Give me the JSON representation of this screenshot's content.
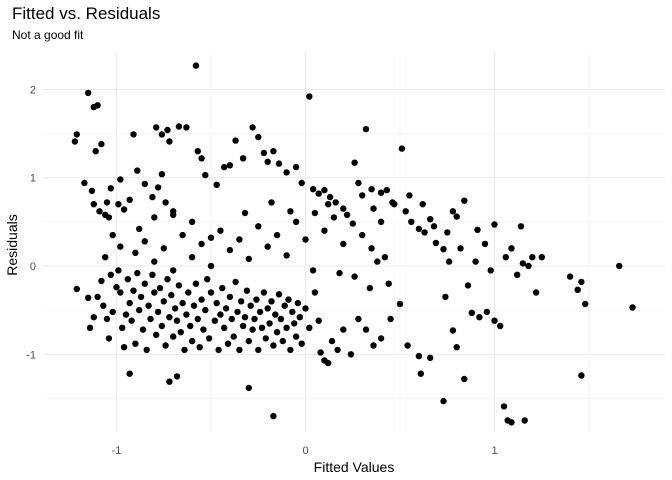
{
  "chart_data": {
    "type": "scatter",
    "title": "Fitted vs. Residuals",
    "subtitle": "Not a good fit",
    "xlabel": "Fitted Values",
    "ylabel": "Residuals",
    "xlim": [
      -1.28,
      1.75
    ],
    "ylim": [
      -1.75,
      2.3
    ],
    "xticks": [
      -1,
      0,
      1
    ],
    "xtick_labels": [
      "-1",
      "0",
      "1"
    ],
    "yticks": [
      -1,
      0,
      1,
      2
    ],
    "ytick_labels": [
      "-1",
      "0",
      "1",
      "2"
    ],
    "grid": true,
    "point_color": "#000000",
    "points": [
      [
        -1.22,
        1.41
      ],
      [
        -1.21,
        1.49
      ],
      [
        -1.15,
        1.96
      ],
      [
        -1.12,
        1.8
      ],
      [
        -1.1,
        1.82
      ],
      [
        -1.11,
        1.3
      ],
      [
        -1.08,
        1.38
      ],
      [
        -1.17,
        0.94
      ],
      [
        -1.13,
        0.85
      ],
      [
        -1.12,
        0.7
      ],
      [
        -1.09,
        0.62
      ],
      [
        -1.06,
        0.58
      ],
      [
        -1.04,
        0.55
      ],
      [
        -1.05,
        0.72
      ],
      [
        -1.03,
        0.88
      ],
      [
        -0.99,
        0.7
      ],
      [
        -0.96,
        0.64
      ],
      [
        -0.93,
        0.75
      ],
      [
        -0.98,
        0.98
      ],
      [
        -0.91,
        1.49
      ],
      [
        -0.89,
        1.08
      ],
      [
        -0.85,
        0.93
      ],
      [
        -0.81,
        0.78
      ],
      [
        -0.8,
        0.55
      ],
      [
        -0.78,
        0.89
      ],
      [
        -0.76,
        1.04
      ],
      [
        -0.74,
        0.72
      ],
      [
        -0.7,
        0.62
      ],
      [
        -0.79,
        1.57
      ],
      [
        -0.76,
        1.49
      ],
      [
        -0.73,
        1.54
      ],
      [
        -0.72,
        1.41
      ],
      [
        -0.67,
        1.58
      ],
      [
        -0.63,
        1.57
      ],
      [
        -0.58,
        2.27
      ],
      [
        -0.57,
        1.3
      ],
      [
        -0.55,
        1.22
      ],
      [
        -0.53,
        1.03
      ],
      [
        -0.47,
        0.92
      ],
      [
        -0.43,
        1.12
      ],
      [
        -0.4,
        1.14
      ],
      [
        -0.37,
        1.42
      ],
      [
        -0.33,
        1.22
      ],
      [
        -0.28,
        1.57
      ],
      [
        -0.25,
        1.46
      ],
      [
        -0.22,
        1.28
      ],
      [
        -0.2,
        1.18
      ],
      [
        -0.17,
        1.3
      ],
      [
        -0.14,
        1.16
      ],
      [
        -0.1,
        1.06
      ],
      [
        -0.05,
        1.12
      ],
      [
        -0.02,
        0.94
      ],
      [
        0.02,
        1.92
      ],
      [
        0.04,
        0.87
      ],
      [
        0.07,
        0.82
      ],
      [
        0.1,
        0.86
      ],
      [
        0.13,
        0.78
      ],
      [
        0.16,
        0.72
      ],
      [
        0.2,
        0.65
      ],
      [
        0.26,
        1.17
      ],
      [
        0.28,
        0.94
      ],
      [
        0.32,
        1.55
      ],
      [
        0.35,
        0.87
      ],
      [
        0.4,
        0.83
      ],
      [
        0.43,
        0.86
      ],
      [
        0.47,
        0.7
      ],
      [
        0.51,
        1.33
      ],
      [
        0.53,
        0.62
      ],
      [
        0.56,
        0.5
      ],
      [
        0.6,
        0.42
      ],
      [
        0.63,
        0.38
      ],
      [
        0.66,
        0.53
      ],
      [
        0.69,
        0.26
      ],
      [
        0.73,
        0.19
      ],
      [
        0.76,
        0.05
      ],
      [
        0.78,
        0.62
      ],
      [
        0.8,
        0.56
      ],
      [
        0.84,
        0.74
      ],
      [
        0.91,
        0.41
      ],
      [
        0.95,
        0.25
      ],
      [
        1.0,
        0.47
      ],
      [
        1.06,
        0.1
      ],
      [
        1.09,
        0.2
      ],
      [
        1.14,
        0.45
      ],
      [
        1.15,
        0.03
      ],
      [
        1.2,
        0.1
      ],
      [
        1.25,
        0.1
      ],
      [
        1.4,
        -0.12
      ],
      [
        1.44,
        -0.27
      ],
      [
        1.46,
        -0.18
      ],
      [
        1.48,
        -0.43
      ],
      [
        1.66,
        0.0
      ],
      [
        1.73,
        -0.47
      ],
      [
        -1.21,
        -0.26
      ],
      [
        -1.15,
        -0.36
      ],
      [
        -1.14,
        -0.7
      ],
      [
        -1.12,
        -0.58
      ],
      [
        -1.1,
        -0.35
      ],
      [
        -1.08,
        -0.17
      ],
      [
        -1.07,
        -0.45
      ],
      [
        -1.05,
        -0.6
      ],
      [
        -1.04,
        -0.82
      ],
      [
        -1.03,
        -0.1
      ],
      [
        -1.02,
        -0.52
      ],
      [
        -1.0,
        -0.24
      ],
      [
        -0.99,
        -0.05
      ],
      [
        -0.98,
        -0.3
      ],
      [
        -0.97,
        -0.7
      ],
      [
        -0.96,
        -0.92
      ],
      [
        -0.95,
        -0.55
      ],
      [
        -0.94,
        -0.15
      ],
      [
        -0.93,
        -0.42
      ],
      [
        -0.92,
        -0.62
      ],
      [
        -0.91,
        -0.28
      ],
      [
        -0.9,
        -0.88
      ],
      [
        -0.89,
        -0.08
      ],
      [
        -0.88,
        -0.5
      ],
      [
        -0.87,
        -0.35
      ],
      [
        -0.86,
        -0.72
      ],
      [
        -0.85,
        -0.2
      ],
      [
        -0.84,
        -0.95
      ],
      [
        -0.83,
        -0.45
      ],
      [
        -0.82,
        -0.6
      ],
      [
        -0.81,
        -0.1
      ],
      [
        -0.8,
        -0.3
      ],
      [
        -0.79,
        -0.78
      ],
      [
        -0.78,
        -0.52
      ],
      [
        -0.77,
        -0.25
      ],
      [
        -0.76,
        -0.68
      ],
      [
        -0.75,
        -0.4
      ],
      [
        -0.74,
        -0.9
      ],
      [
        -0.73,
        -0.15
      ],
      [
        -0.72,
        -0.58
      ],
      [
        -0.71,
        -0.33
      ],
      [
        -0.7,
        -0.8
      ],
      [
        -0.69,
        -0.48
      ],
      [
        -0.68,
        -0.62
      ],
      [
        -0.67,
        -0.22
      ],
      [
        -0.66,
        -0.75
      ],
      [
        -0.65,
        -0.42
      ],
      [
        -0.64,
        -0.95
      ],
      [
        -0.63,
        -0.55
      ],
      [
        -0.62,
        -0.3
      ],
      [
        -0.61,
        -0.68
      ],
      [
        -0.6,
        -0.85
      ],
      [
        -0.59,
        -0.45
      ],
      [
        -0.58,
        -0.2
      ],
      [
        -0.57,
        -0.6
      ],
      [
        -0.56,
        -0.92
      ],
      [
        -0.55,
        -0.38
      ],
      [
        -0.54,
        -0.72
      ],
      [
        -0.53,
        -0.5
      ],
      [
        -0.52,
        -0.15
      ],
      [
        -0.51,
        -0.82
      ],
      [
        -0.5,
        -0.3
      ],
      [
        -0.48,
        -0.62
      ],
      [
        -0.47,
        -0.42
      ],
      [
        -0.46,
        -0.95
      ],
      [
        -0.45,
        -0.55
      ],
      [
        -0.44,
        -0.25
      ],
      [
        -0.43,
        -0.7
      ],
      [
        -0.42,
        -0.48
      ],
      [
        -0.41,
        -0.88
      ],
      [
        -0.4,
        -0.35
      ],
      [
        -0.39,
        -0.6
      ],
      [
        -0.38,
        -0.8
      ],
      [
        -0.37,
        -0.18
      ],
      [
        -0.36,
        -0.52
      ],
      [
        -0.35,
        -0.95
      ],
      [
        -0.34,
        -0.4
      ],
      [
        -0.33,
        -0.68
      ],
      [
        -0.32,
        -0.58
      ],
      [
        -0.31,
        -0.28
      ],
      [
        -0.3,
        -0.85
      ],
      [
        -0.29,
        -0.45
      ],
      [
        -0.28,
        -0.72
      ],
      [
        -0.27,
        -0.6
      ],
      [
        -0.26,
        -0.38
      ],
      [
        -0.25,
        -0.95
      ],
      [
        -0.24,
        -0.52
      ],
      [
        -0.23,
        -0.7
      ],
      [
        -0.22,
        -0.3
      ],
      [
        -0.21,
        -0.82
      ],
      [
        -0.2,
        -0.48
      ],
      [
        -0.19,
        -0.65
      ],
      [
        -0.18,
        -0.4
      ],
      [
        -0.17,
        -0.9
      ],
      [
        -0.16,
        -0.55
      ],
      [
        -0.15,
        -0.75
      ],
      [
        -0.14,
        -0.32
      ],
      [
        -0.13,
        -0.6
      ],
      [
        -0.12,
        -0.85
      ],
      [
        -0.11,
        -0.45
      ],
      [
        -0.1,
        -0.7
      ],
      [
        -0.09,
        -0.38
      ],
      [
        -0.08,
        -0.95
      ],
      [
        -0.07,
        -0.52
      ],
      [
        -0.06,
        -0.65
      ],
      [
        -0.05,
        -0.8
      ],
      [
        -0.04,
        -0.42
      ],
      [
        -0.03,
        -0.58
      ],
      [
        -0.02,
        -0.88
      ],
      [
        0.0,
        -0.48
      ],
      [
        0.02,
        -0.7
      ],
      [
        0.05,
        -0.3
      ],
      [
        0.07,
        -0.62
      ],
      [
        0.08,
        -0.98
      ],
      [
        0.1,
        -1.07
      ],
      [
        0.12,
        -1.1
      ],
      [
        0.14,
        -0.85
      ],
      [
        0.17,
        -0.95
      ],
      [
        0.2,
        -0.72
      ],
      [
        0.24,
        -1.0
      ],
      [
        0.28,
        -0.6
      ],
      [
        0.32,
        -0.72
      ],
      [
        0.36,
        -0.9
      ],
      [
        0.4,
        -0.82
      ],
      [
        0.45,
        -0.6
      ],
      [
        0.5,
        -0.43
      ],
      [
        0.54,
        -0.9
      ],
      [
        0.6,
        -1.02
      ],
      [
        0.61,
        -1.22
      ],
      [
        0.66,
        -1.04
      ],
      [
        0.73,
        -1.53
      ],
      [
        0.78,
        -0.73
      ],
      [
        0.8,
        -0.92
      ],
      [
        0.88,
        -0.53
      ],
      [
        0.92,
        -0.58
      ],
      [
        0.96,
        -0.52
      ],
      [
        1.0,
        -0.62
      ],
      [
        1.03,
        -0.68
      ],
      [
        1.05,
        -1.59
      ],
      [
        1.07,
        -1.75
      ],
      [
        1.09,
        -1.77
      ],
      [
        1.16,
        -1.75
      ],
      [
        1.46,
        -1.24
      ],
      [
        -0.93,
        -1.22
      ],
      [
        -0.72,
        -1.31
      ],
      [
        -0.68,
        -1.25
      ],
      [
        -0.3,
        -1.38
      ],
      [
        -0.17,
        -1.7
      ],
      [
        0.84,
        -1.28
      ],
      [
        -0.9,
        0.15
      ],
      [
        -0.85,
        0.28
      ],
      [
        -0.8,
        0.05
      ],
      [
        -0.75,
        0.2
      ],
      [
        -0.7,
        -0.05
      ],
      [
        -0.65,
        0.35
      ],
      [
        -0.6,
        0.1
      ],
      [
        -0.55,
        0.25
      ],
      [
        -0.5,
        0.0
      ],
      [
        -0.45,
        0.4
      ],
      [
        -0.4,
        0.18
      ],
      [
        -0.35,
        0.3
      ],
      [
        -0.3,
        0.08
      ],
      [
        -0.25,
        0.45
      ],
      [
        -0.2,
        0.22
      ],
      [
        -0.15,
        0.35
      ],
      [
        -0.1,
        0.12
      ],
      [
        -0.05,
        0.5
      ],
      [
        0.0,
        0.3
      ],
      [
        0.05,
        0.6
      ],
      [
        0.1,
        0.4
      ],
      [
        0.15,
        0.55
      ],
      [
        0.2,
        0.25
      ],
      [
        0.25,
        0.48
      ],
      [
        0.3,
        0.35
      ],
      [
        0.35,
        0.2
      ],
      [
        0.4,
        0.5
      ],
      [
        0.42,
        0.1
      ],
      [
        0.38,
        0.05
      ],
      [
        -0.98,
        0.22
      ],
      [
        -1.02,
        0.35
      ],
      [
        -1.06,
        0.1
      ],
      [
        -0.88,
        0.42
      ],
      [
        -0.7,
        0.58
      ],
      [
        -0.6,
        0.5
      ],
      [
        -0.5,
        0.32
      ],
      [
        -0.32,
        0.6
      ],
      [
        -0.18,
        0.72
      ],
      [
        -0.08,
        0.62
      ],
      [
        0.12,
        0.7
      ],
      [
        0.22,
        0.58
      ],
      [
        0.3,
        0.8
      ],
      [
        0.36,
        0.65
      ],
      [
        0.46,
        0.72
      ],
      [
        0.55,
        0.8
      ],
      [
        0.62,
        0.7
      ],
      [
        0.68,
        0.45
      ],
      [
        0.75,
        0.38
      ],
      [
        0.82,
        0.2
      ],
      [
        0.9,
        0.05
      ],
      [
        0.98,
        -0.05
      ],
      [
        1.12,
        -0.1
      ],
      [
        1.18,
        0.0
      ],
      [
        0.04,
        -0.05
      ],
      [
        0.18,
        -0.08
      ],
      [
        0.26,
        -0.12
      ],
      [
        0.34,
        -0.25
      ],
      [
        0.44,
        -0.2
      ],
      [
        0.74,
        -0.35
      ],
      [
        0.86,
        -0.22
      ],
      [
        1.22,
        -0.3
      ]
    ]
  }
}
